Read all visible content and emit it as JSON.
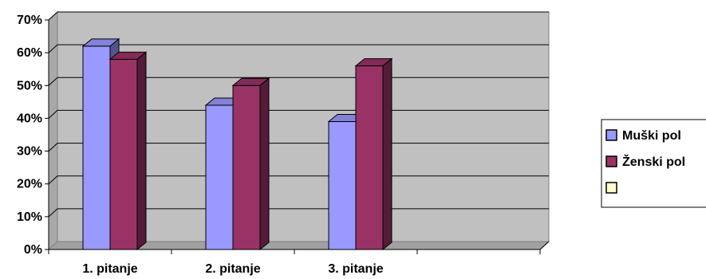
{
  "chart_data": {
    "type": "bar",
    "categories": [
      "1. pitanje",
      "2. pitanje",
      "3. pitanje",
      ""
    ],
    "series": [
      {
        "name": "Muški pol",
        "values": [
          62,
          44,
          39,
          null
        ],
        "color": "#9999ff"
      },
      {
        "name": "Ženski pol",
        "values": [
          58,
          50,
          56,
          null
        ],
        "color": "#993366"
      },
      {
        "name": "",
        "values": [
          null,
          null,
          null,
          null
        ],
        "color": "#ffffcc"
      }
    ],
    "yticks": [
      "0%",
      "10%",
      "20%",
      "30%",
      "40%",
      "50%",
      "60%",
      "70%"
    ],
    "ylim": [
      0,
      70
    ],
    "grid": true,
    "legend": "right",
    "plot_bg": "#c0c0c0"
  }
}
